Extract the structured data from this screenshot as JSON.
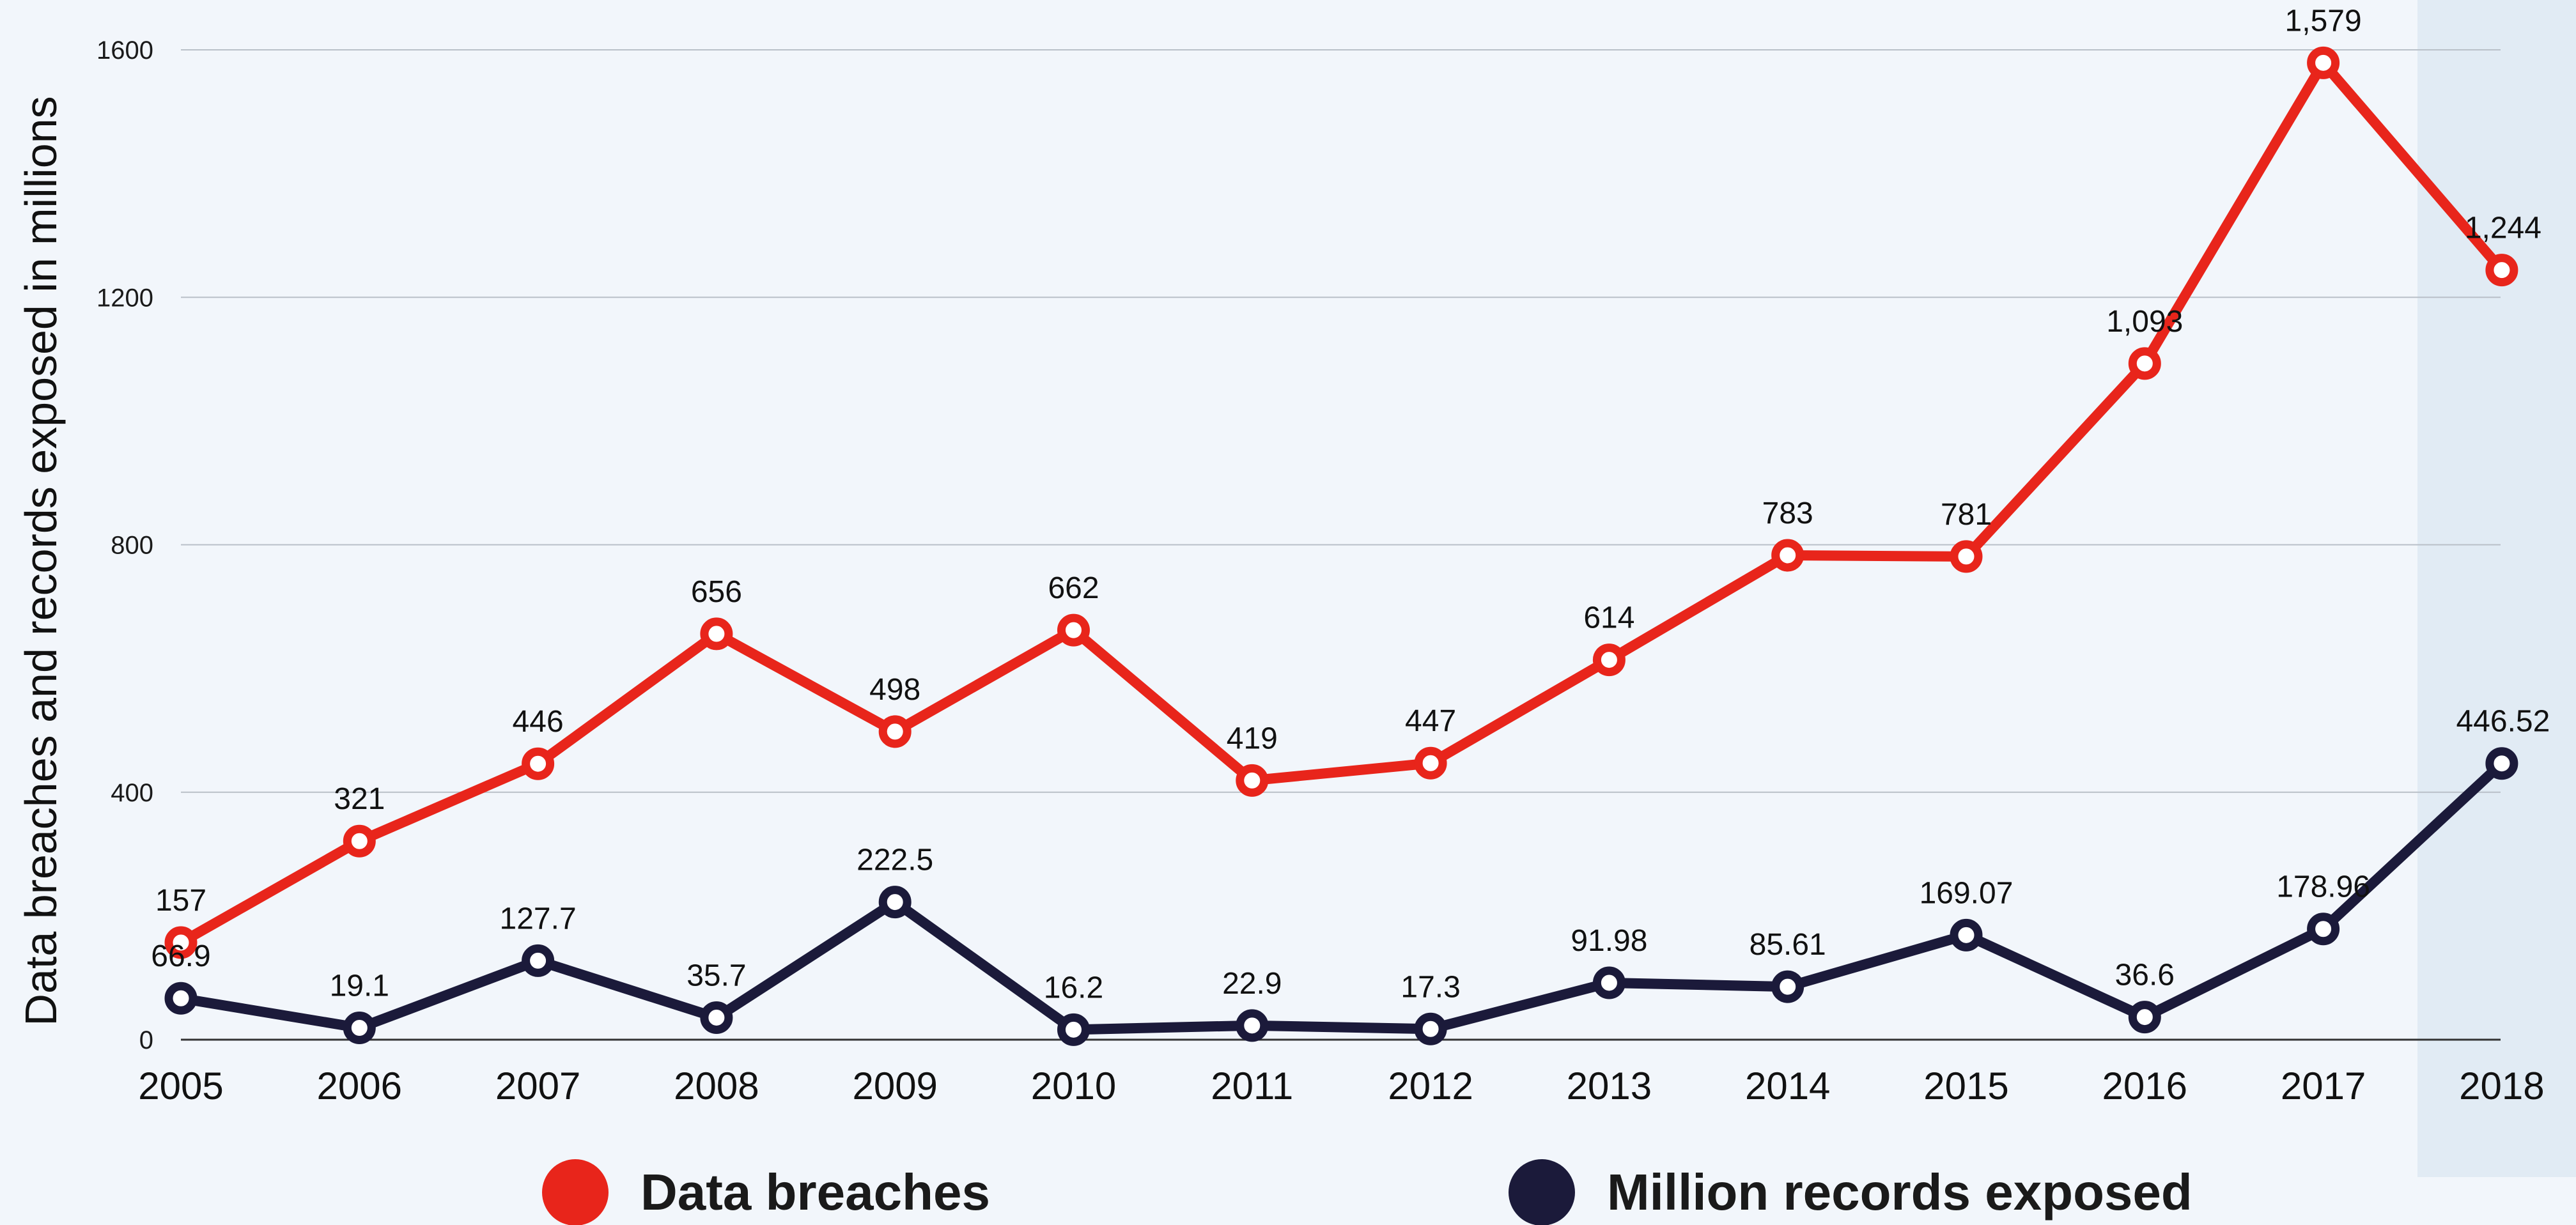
{
  "chart_data": {
    "type": "line",
    "title": "",
    "xlabel": "",
    "ylabel": "Data breaches and records exposed in millions",
    "categories": [
      "2005",
      "2006",
      "2007",
      "2008",
      "2009",
      "2010",
      "2011",
      "2012",
      "2013",
      "2014",
      "2015",
      "2016",
      "2017",
      "2018"
    ],
    "ylim": [
      0,
      1600
    ],
    "yticks": [
      0,
      400,
      800,
      1200,
      1600
    ],
    "ytick_labels": [
      "0",
      "400",
      "800",
      "1200",
      "1600"
    ],
    "grid": true,
    "legend_position": "bottom",
    "highlighted_category": "2018",
    "series": [
      {
        "name": "Data breaches",
        "color": "#e8251b",
        "values": [
          157,
          321,
          446,
          656,
          498,
          662,
          419,
          447,
          614,
          783,
          781,
          1093,
          1579,
          1244
        ],
        "labels": [
          "157",
          "321",
          "446",
          "656",
          "498",
          "662",
          "419",
          "447",
          "614",
          "783",
          "781",
          "1,093",
          "1,579",
          "1,244"
        ]
      },
      {
        "name": "Million records exposed",
        "color": "#1b1a3a",
        "values": [
          66.9,
          19.1,
          127.7,
          35.7,
          222.5,
          16.2,
          22.9,
          17.3,
          91.98,
          85.61,
          169.07,
          36.6,
          178.96,
          446.52
        ],
        "labels": [
          "66.9",
          "19.1",
          "127.7",
          "35.7",
          "222.5",
          "16.2",
          "22.9",
          "17.3",
          "91.98",
          "85.61",
          "169.07",
          "36.6",
          "178.96",
          "446.52"
        ]
      }
    ]
  }
}
